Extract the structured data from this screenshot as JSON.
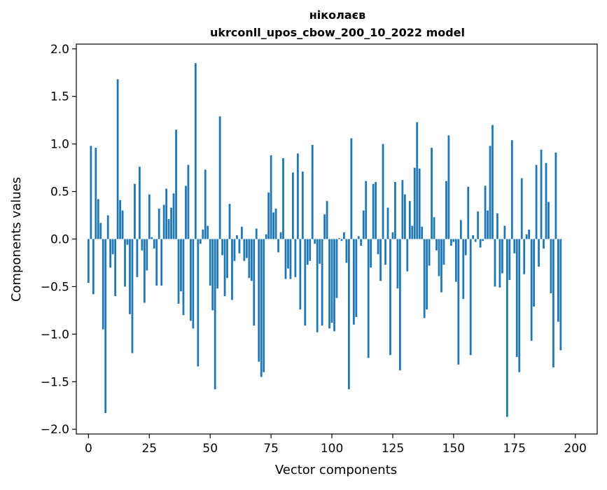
{
  "chart_data": {
    "type": "bar",
    "title_line1": "ніколаєв",
    "title_line2": "ukrconll_upos_cbow_200_10_2022 model",
    "xlabel": "Vector components",
    "ylabel": "Components values",
    "xlim": [
      -5,
      209
    ],
    "ylim": [
      -2.05,
      2.05
    ],
    "xticks": [
      0,
      25,
      50,
      75,
      100,
      125,
      150,
      175,
      200
    ],
    "yticks": [
      -2.0,
      -1.5,
      -1.0,
      -0.5,
      0.0,
      0.5,
      1.0,
      1.5,
      2.0
    ],
    "ytick_labels": [
      "−2.0",
      "−1.5",
      "−1.0",
      "−0.5",
      "0.0",
      "0.5",
      "1.0",
      "1.5",
      "2.0"
    ],
    "bar_color": "#1f77b4",
    "grid": false,
    "values": [
      -0.46,
      0.98,
      -0.58,
      0.96,
      0.42,
      0.17,
      -0.95,
      -1.83,
      0.25,
      -0.3,
      -0.16,
      -0.6,
      1.68,
      0.41,
      0.3,
      -0.5,
      -0.06,
      -0.79,
      -1.2,
      0.58,
      -0.4,
      0.76,
      -0.12,
      -0.67,
      -0.33,
      0.47,
      0.02,
      -0.1,
      -0.49,
      0.32,
      -0.49,
      0.36,
      0.53,
      0.21,
      0.33,
      0.48,
      1.15,
      -0.68,
      -0.55,
      -0.8,
      0.56,
      0.78,
      -0.86,
      -0.94,
      1.85,
      -1.34,
      -0.05,
      0.1,
      0.73,
      0.14,
      -0.49,
      -0.75,
      -1.58,
      -0.52,
      1.29,
      -0.17,
      -0.6,
      -0.41,
      0.37,
      -0.64,
      -0.23,
      0.04,
      -0.15,
      0.13,
      -0.23,
      -0.2,
      -0.41,
      -0.44,
      -0.91,
      0.11,
      -1.29,
      -1.45,
      -1.4,
      0.05,
      0.49,
      0.88,
      0.28,
      0.32,
      -0.14,
      0.07,
      0.85,
      -0.42,
      -0.31,
      -0.42,
      0.7,
      -0.4,
      0.9,
      -0.74,
      0.71,
      -0.91,
      -0.27,
      -0.23,
      0.99,
      -0.05,
      -0.98,
      -0.26,
      -0.91,
      0.26,
      0.4,
      -0.94,
      -0.88,
      -0.97,
      -0.62,
      0.01,
      -0.02,
      0.07,
      -0.25,
      -1.58,
      1.06,
      -0.9,
      -0.82,
      0.03,
      -0.07,
      0.3,
      0.61,
      -1.25,
      -0.3,
      0.58,
      0.6,
      -0.16,
      -0.44,
      1.0,
      -0.27,
      0.33,
      -1.22,
      0.07,
      0.6,
      -0.52,
      -1.38,
      0.62,
      0.47,
      -0.34,
      0.4,
      0.14,
      0.75,
      1.23,
      0.74,
      0.13,
      -0.83,
      -0.74,
      -0.28,
      0.96,
      0.23,
      -0.12,
      -0.39,
      -0.56,
      -0.27,
      0.61,
      1.09,
      -0.07,
      -0.03,
      -0.45,
      -1.32,
      0.2,
      -0.63,
      -0.17,
      0.55,
      -1.22,
      0.04,
      -0.03,
      0.29,
      -0.09,
      -0.02,
      0.56,
      0.3,
      0.98,
      1.2,
      -0.5,
      0.27,
      -0.51,
      -0.36,
      0.14,
      -1.87,
      -0.43,
      1.04,
      -0.15,
      -1.24,
      -1.4,
      0.64,
      -0.37,
      0.05,
      0.1,
      -1.07,
      -0.71,
      0.78,
      -0.29,
      0.94,
      -0.1,
      0.8,
      0.39,
      -0.57,
      -1.35,
      0.91,
      -0.87,
      -1.17
    ]
  }
}
